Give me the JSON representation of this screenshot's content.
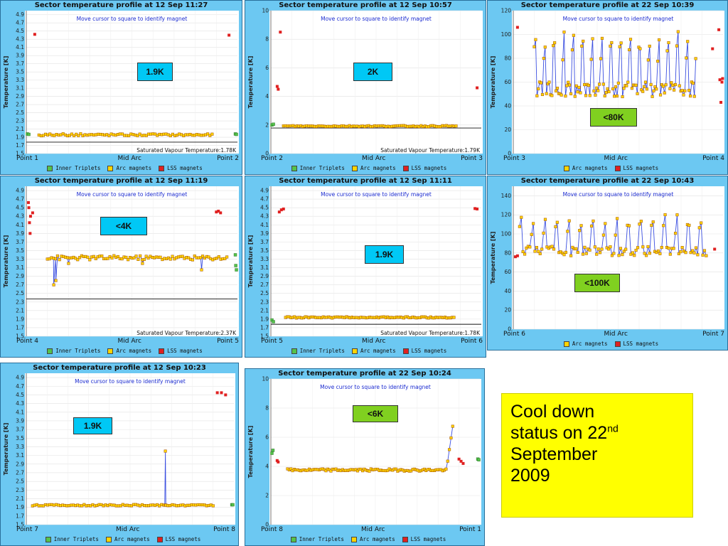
{
  "note": {
    "line1": "Cool down",
    "line2a": "status on 22",
    "line2sup": "nd",
    "line3": "September",
    "line4": "2009"
  },
  "colors": {
    "inner": "#55c24a",
    "arc": "#ffd400",
    "lss": "#e02020",
    "line": "#3a4ee0"
  },
  "legend_labels": {
    "inner": "Inner Triplets",
    "arc": "Arc magnets",
    "lss": "LSS magnets"
  },
  "chart_data": [
    {
      "id": "s12",
      "type": "scatter",
      "title": "Sector temperature profile at 12 Sep 11:27",
      "ylabel": "Temperature [K]",
      "hint": "Move cursor to square to identify magnet",
      "xlabels": [
        "Point 1",
        "Mid Arc",
        "Point 2"
      ],
      "ylim": [
        1.5,
        5.0
      ],
      "yticks": [
        1.5,
        1.7,
        1.9,
        2.1,
        2.3,
        2.5,
        2.7,
        2.9,
        3.1,
        3.3,
        3.5,
        3.7,
        3.9,
        4.1,
        4.3,
        4.5,
        4.7,
        4.9
      ],
      "saturation": {
        "label": "Saturated Vapour Temperature:1.78K",
        "value": 1.78
      },
      "badge": "1.9K",
      "badge_color": "#00c8f5",
      "legend": [
        "inner",
        "arc",
        "lss"
      ],
      "arc": {
        "base": 1.96,
        "amp": 0.025,
        "n": 80,
        "connected": false
      },
      "lss": [
        [
          0.04,
          4.42
        ],
        [
          0.96,
          4.4
        ]
      ],
      "inner": [
        [
          0.005,
          1.98
        ],
        [
          0.012,
          1.97
        ],
        [
          0.99,
          1.98
        ],
        [
          0.995,
          1.97
        ]
      ]
    },
    {
      "id": "s23",
      "type": "scatter",
      "title": "Sector temperature profile at 12 Sep 10:57",
      "ylabel": "Temperature [K]",
      "hint": "Move cursor to square to identify magnet",
      "xlabels": [
        "Point 2",
        "Mid Arc",
        "Point 3"
      ],
      "ylim": [
        0,
        10
      ],
      "yticks": [
        0,
        2,
        4,
        6,
        8,
        10
      ],
      "saturation": {
        "label": "Saturated Vapour Temperature:1.79K",
        "value": 1.79
      },
      "badge": "2K",
      "badge_color": "#00c8f5",
      "legend": [
        "inner",
        "arc",
        "lss"
      ],
      "arc": {
        "base": 1.92,
        "amp": 0.04,
        "n": 90,
        "connected": false
      },
      "lss": [
        [
          0.03,
          4.7
        ],
        [
          0.035,
          4.5
        ],
        [
          0.045,
          8.5
        ],
        [
          0.98,
          4.6
        ]
      ],
      "inner": [
        [
          0.005,
          2.0
        ],
        [
          0.012,
          2.05
        ]
      ]
    },
    {
      "id": "s34",
      "type": "line",
      "title": "Sector temperature profile at 22 Sep 10:39",
      "ylabel": "Temperature [K]",
      "hint": "Move cursor to square to identify magnet",
      "xlabels": [
        "Point 3",
        "Mid Arc",
        "Point 4"
      ],
      "ylim": [
        0,
        120
      ],
      "yticks": [
        0,
        20,
        40,
        60,
        80,
        100,
        120
      ],
      "saturation": null,
      "badge": "<80K",
      "badge_color": "#80d020",
      "legend": [
        "arc",
        "lss"
      ],
      "arc": {
        "base": 54,
        "amp": 18,
        "n": 120,
        "connected": true,
        "spiky": true,
        "start": 0.1,
        "end": 0.87
      },
      "lss": [
        [
          0.02,
          106
        ],
        [
          0.95,
          88
        ],
        [
          0.98,
          104
        ],
        [
          0.985,
          62
        ],
        [
          0.99,
          43
        ],
        [
          0.995,
          60
        ],
        [
          0.998,
          63
        ]
      ],
      "inner": []
    },
    {
      "id": "s45",
      "type": "scatter",
      "title": "Sector temperature profile at 12 Sep 11:19",
      "ylabel": "Temperature [K]",
      "hint": "Move cursor to square to identify magnet",
      "xlabels": [
        "Point 4",
        "Mid Arc",
        "Point 5"
      ],
      "ylim": [
        1.5,
        5.0
      ],
      "yticks": [
        1.5,
        1.7,
        1.9,
        2.1,
        2.3,
        2.5,
        2.7,
        2.9,
        3.1,
        3.3,
        3.5,
        3.7,
        3.9,
        4.1,
        4.3,
        4.5,
        4.7,
        4.9
      ],
      "saturation": {
        "label": "Saturated Vapour Temperature:2.37K",
        "value": 2.37
      },
      "badge": "<4K",
      "badge_color": "#00c8f5",
      "legend": [
        "inner",
        "arc",
        "lss"
      ],
      "arc": {
        "base": 3.33,
        "amp": 0.05,
        "n": 90,
        "connected": true,
        "start": 0.1,
        "end": 0.95
      },
      "lss": [
        [
          0.01,
          4.62
        ],
        [
          0.012,
          4.5
        ],
        [
          0.015,
          4.15
        ],
        [
          0.018,
          3.9
        ],
        [
          0.02,
          4.3
        ],
        [
          0.03,
          4.38
        ],
        [
          0.9,
          4.4
        ],
        [
          0.91,
          4.42
        ],
        [
          0.92,
          4.38
        ]
      ],
      "inner": [
        [
          0.99,
          3.4
        ],
        [
          0.992,
          3.15
        ],
        [
          0.995,
          3.05
        ]
      ],
      "dips": [
        [
          0.13,
          2.7
        ],
        [
          0.14,
          2.8
        ],
        [
          0.2,
          3.2
        ],
        [
          0.55,
          3.2
        ],
        [
          0.83,
          3.05
        ]
      ]
    },
    {
      "id": "s56",
      "type": "scatter",
      "title": "Sector temperature profile at 12 Sep 11:11",
      "ylabel": "Temperature [K]",
      "hint": "Move cursor to square to identify magnet",
      "xlabels": [
        "Point 5",
        "Mid Arc",
        "Point 6"
      ],
      "ylim": [
        1.5,
        5.0
      ],
      "yticks": [
        1.5,
        1.7,
        1.9,
        2.1,
        2.3,
        2.5,
        2.7,
        2.9,
        3.1,
        3.3,
        3.5,
        3.7,
        3.9,
        4.1,
        4.3,
        4.5,
        4.7,
        4.9
      ],
      "saturation": {
        "label": "Saturated Vapour Temperature:1.78K",
        "value": 1.78
      },
      "badge": "1.9K",
      "badge_color": "#00c8f5",
      "legend": [
        "inner",
        "arc",
        "lss"
      ],
      "arc": {
        "base": 1.94,
        "amp": 0.015,
        "n": 95,
        "connected": false,
        "start": 0.07,
        "end": 0.87
      },
      "lss": [
        [
          0.04,
          4.4
        ],
        [
          0.05,
          4.45
        ],
        [
          0.06,
          4.47
        ],
        [
          0.97,
          4.48
        ],
        [
          0.98,
          4.47
        ]
      ],
      "inner": [
        [
          0.005,
          1.88
        ],
        [
          0.012,
          1.84
        ]
      ]
    },
    {
      "id": "s67",
      "type": "line",
      "title": "Sector temperature profile at 22 Sep 10:43",
      "ylabel": "Temperature [K]",
      "hint": "Move cursor to square to identify magnet",
      "xlabels": [
        "Point 6",
        "Mid Arc",
        "Point 7"
      ],
      "ylim": [
        0,
        150
      ],
      "yticks": [
        0,
        20,
        40,
        60,
        80,
        100,
        120,
        140
      ],
      "saturation": null,
      "badge": "<100K",
      "badge_color": "#80d020",
      "legend": [
        "arc",
        "lss"
      ],
      "arc": {
        "base": 82,
        "amp": 14,
        "n": 110,
        "connected": true,
        "spiky": true,
        "start": 0.03,
        "end": 0.92
      },
      "lss": [
        [
          0.01,
          76
        ],
        [
          0.02,
          77
        ],
        [
          0.96,
          84
        ]
      ],
      "inner": []
    },
    {
      "id": "s78",
      "type": "scatter",
      "title": "Sector temperature profile at 12 Sep 10:23",
      "ylabel": "Temperature [K]",
      "hint": "Move cursor to square to identify magnet",
      "xlabels": [
        "Point 7",
        "Mid Arc",
        "Point 8"
      ],
      "ylim": [
        1.5,
        5.0
      ],
      "yticks": [
        1.5,
        1.7,
        1.9,
        2.1,
        2.3,
        2.5,
        2.7,
        2.9,
        3.1,
        3.3,
        3.5,
        3.7,
        3.9,
        4.1,
        4.3,
        4.5,
        4.7,
        4.9
      ],
      "saturation": null,
      "badge": "1.9K",
      "badge_color": "#00c8f5",
      "legend": [
        "inner",
        "arc",
        "lss"
      ],
      "arc": {
        "base": 1.95,
        "amp": 0.015,
        "n": 85,
        "connected": true,
        "start": 0.03,
        "end": 0.9
      },
      "lss": [
        [
          0.92,
          4.55
        ],
        [
          0.94,
          4.55
        ],
        [
          0.96,
          4.5
        ]
      ],
      "inner": [
        [
          0.99,
          1.96
        ],
        [
          0.995,
          1.96
        ]
      ],
      "spike": [
        [
          0.67,
          3.2
        ]
      ]
    },
    {
      "id": "s81",
      "type": "line",
      "title": "Sector temperature profile at 22 Sep 10:24",
      "ylabel": "Temperature [K]",
      "hint": "Move cursor to square to identify magnet",
      "xlabels": [
        "Point 8",
        "Mid Arc",
        "Point 1"
      ],
      "ylim": [
        0,
        10
      ],
      "yticks": [
        0,
        2,
        4,
        6,
        8,
        10
      ],
      "saturation": null,
      "badge": "<6K",
      "badge_color": "#80d020",
      "legend": [
        "inner",
        "arc",
        "lss"
      ],
      "arc": {
        "base": 3.75,
        "amp": 0.08,
        "n": 100,
        "connected": true,
        "start": 0.08,
        "end": 0.87,
        "rise": true
      },
      "lss": [
        [
          0.03,
          4.4
        ],
        [
          0.035,
          4.3
        ],
        [
          0.9,
          4.5
        ],
        [
          0.91,
          4.35
        ],
        [
          0.92,
          4.2
        ]
      ],
      "inner": [
        [
          0.005,
          4.9
        ],
        [
          0.01,
          5.1
        ],
        [
          0.99,
          4.5
        ],
        [
          0.995,
          4.45
        ]
      ]
    }
  ]
}
